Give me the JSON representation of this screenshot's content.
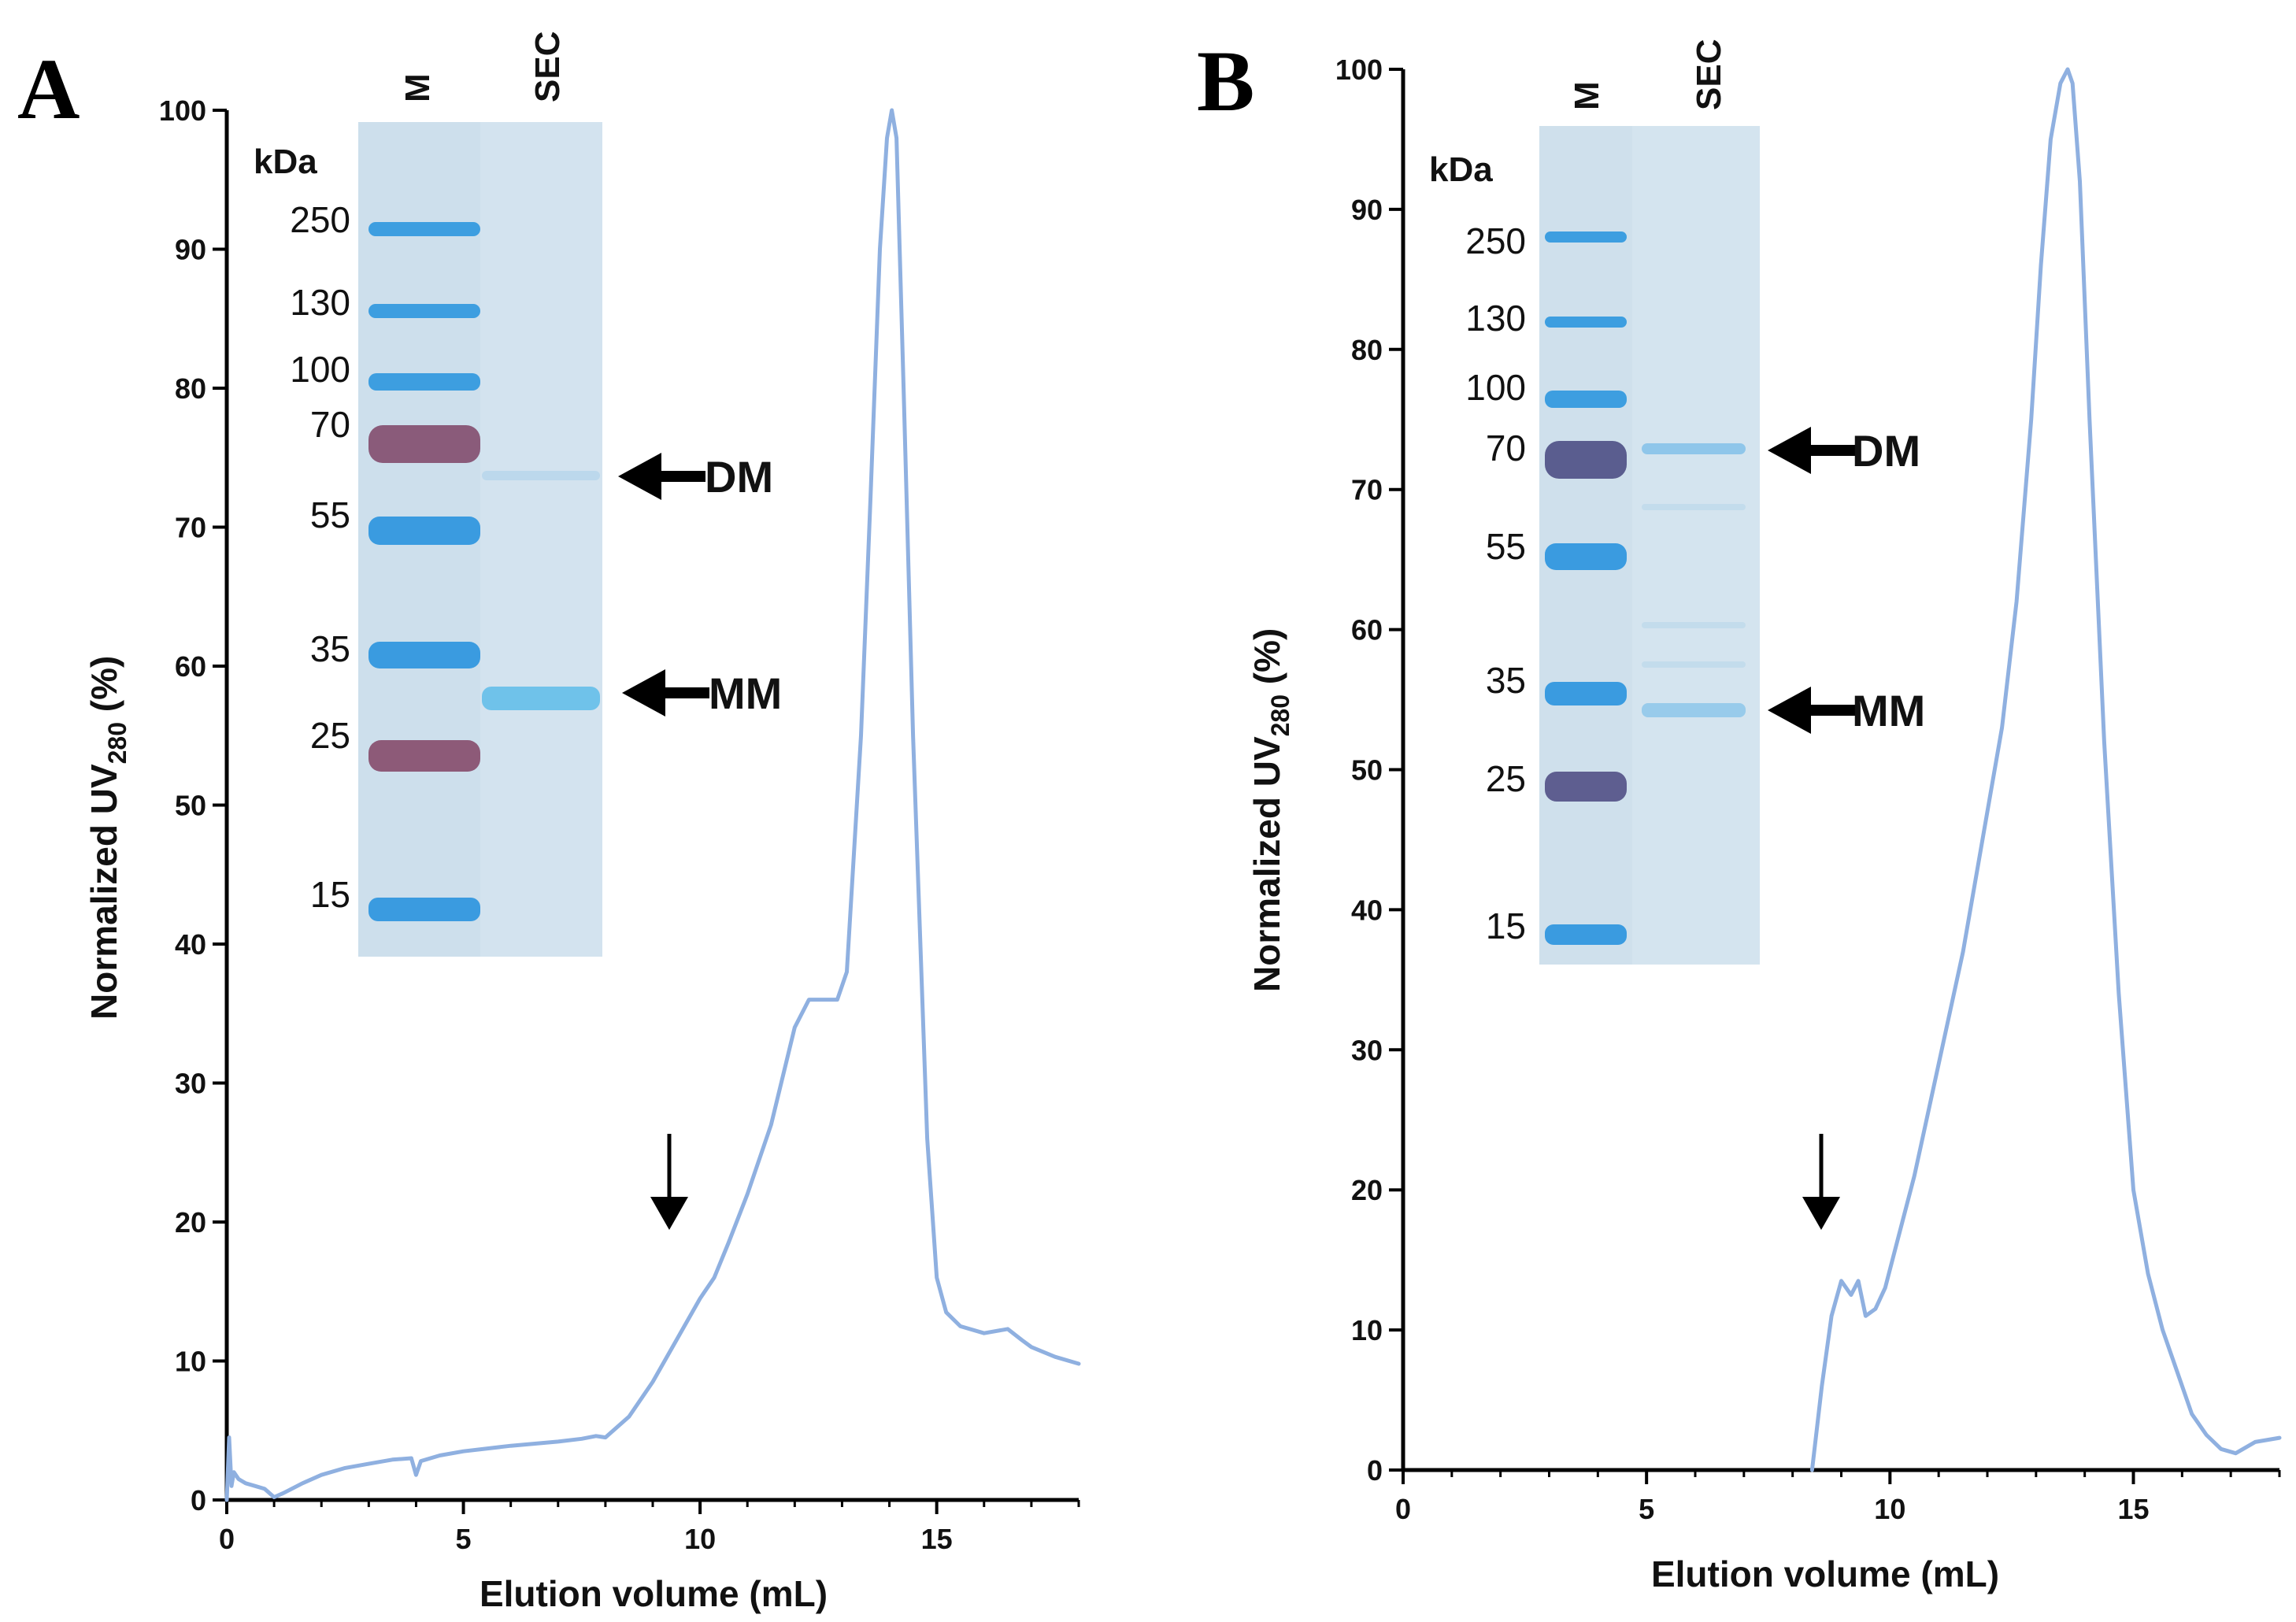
{
  "figure": {
    "background": "#ffffff",
    "trace_color": "#8fb0e0",
    "gel_color": "#cfe0ee"
  },
  "chart_data": [
    {
      "type": "line",
      "panel_label": "A",
      "xlabel": "Elution volume (mL)",
      "ylabel_main": "Normalized UV",
      "ylabel_sub": "280",
      "ylabel_unit": " (%)",
      "xlim": [
        0,
        18
      ],
      "ylim": [
        0,
        100
      ],
      "xticks": [
        0,
        5,
        10,
        15
      ],
      "yticks": [
        0,
        10,
        20,
        30,
        40,
        50,
        60,
        70,
        80,
        90,
        100
      ],
      "series": [
        {
          "name": "UV280",
          "x": [
            0,
            0.05,
            0.1,
            0.15,
            0.25,
            0.4,
            0.6,
            0.8,
            1.0,
            1.2,
            1.6,
            2,
            2.5,
            3,
            3.5,
            3.9,
            4.0,
            4.1,
            4.5,
            5,
            6,
            7,
            7.5,
            7.8,
            8,
            8.5,
            9,
            9.5,
            10,
            10.3,
            10.6,
            11,
            11.5,
            12,
            12.3,
            12.6,
            12.9,
            13.1,
            13.4,
            13.6,
            13.8,
            13.95,
            14.05,
            14.15,
            14.3,
            14.5,
            14.8,
            15,
            15.2,
            15.5,
            16,
            16.5,
            16.8,
            17,
            17.5,
            18
          ],
          "y": [
            0,
            4.5,
            1,
            2,
            1.5,
            1.2,
            1.0,
            0.8,
            0.2,
            0.5,
            1.2,
            1.8,
            2.3,
            2.6,
            2.9,
            3,
            1.8,
            2.8,
            3.2,
            3.5,
            3.9,
            4.2,
            4.4,
            4.6,
            4.5,
            6,
            8.5,
            11.5,
            14.5,
            16,
            18.5,
            22,
            27,
            34,
            36,
            36,
            36,
            38,
            55,
            72,
            90,
            98,
            100,
            98,
            80,
            55,
            26,
            16,
            13.5,
            12.5,
            12,
            12.3,
            11.5,
            11,
            10.3,
            9.8
          ]
        }
      ],
      "gel": {
        "lanes": [
          "M",
          "SEC"
        ],
        "unit_label": "kDa",
        "marker_sizes": [
          "250",
          "130",
          "100",
          "70",
          "55",
          "35",
          "25",
          "15"
        ],
        "annotations": [
          {
            "label": "DM"
          },
          {
            "label": "MM"
          }
        ]
      }
    },
    {
      "type": "line",
      "panel_label": "B",
      "xlabel": "Elution volume (mL)",
      "ylabel_main": "Normalized UV",
      "ylabel_sub": "280",
      "ylabel_unit": " (%)",
      "xlim": [
        0,
        18
      ],
      "ylim": [
        0,
        100
      ],
      "xticks": [
        0,
        5,
        10,
        15
      ],
      "yticks": [
        0,
        10,
        20,
        30,
        40,
        50,
        60,
        70,
        80,
        90,
        100
      ],
      "series": [
        {
          "name": "UV280",
          "x": [
            8.4,
            8.6,
            8.8,
            9.0,
            9.2,
            9.35,
            9.5,
            9.7,
            9.9,
            10.2,
            10.5,
            11,
            11.5,
            12,
            12.3,
            12.6,
            12.9,
            13.1,
            13.3,
            13.5,
            13.65,
            13.75,
            13.9,
            14.1,
            14.4,
            14.7,
            15,
            15.3,
            15.6,
            15.9,
            16.2,
            16.5,
            16.8,
            17.1,
            17.5,
            18
          ],
          "y": [
            0,
            6,
            11,
            13.5,
            12.5,
            13.5,
            11,
            11.5,
            13,
            17,
            21,
            29,
            37,
            47,
            53,
            62,
            75,
            86,
            95,
            99,
            100,
            99,
            92,
            75,
            52,
            34,
            20,
            14,
            10,
            7,
            4,
            2.5,
            1.5,
            1.2,
            2,
            2.3
          ]
        }
      ],
      "gel": {
        "lanes": [
          "M",
          "SEC"
        ],
        "unit_label": "kDa",
        "marker_sizes": [
          "250",
          "130",
          "100",
          "70",
          "55",
          "35",
          "25",
          "15"
        ],
        "annotations": [
          {
            "label": "DM"
          },
          {
            "label": "MM"
          }
        ]
      }
    }
  ]
}
